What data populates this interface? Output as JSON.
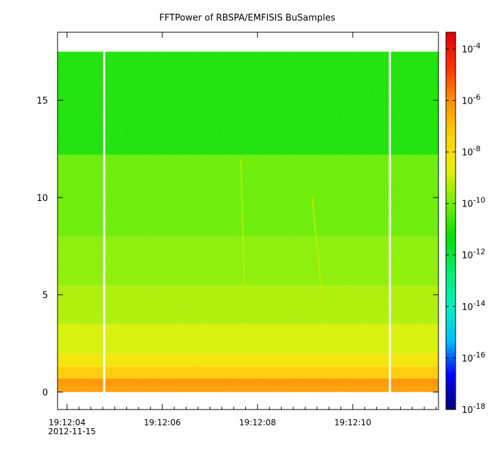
{
  "chart_data": {
    "type": "heatmap",
    "title": "FFTPower of RBSPA/EMFISIS  BuSamples",
    "xlabel": "",
    "ylabel": "",
    "x_tick_labels": [
      "19:12:04",
      "19:12:06",
      "19:12:08",
      "19:12:10"
    ],
    "x_tick_times_s": [
      4,
      6,
      8,
      10
    ],
    "x_date_label": "2012-11-15",
    "xlim_s": [
      3.8,
      11.8
    ],
    "y_ticks": [
      0,
      5,
      10,
      15
    ],
    "ylim": [
      -0.9,
      18.5
    ],
    "data_y_max": 17.5,
    "gaps_s": [
      4.78,
      10.78
    ],
    "colorbar": {
      "scale": "log",
      "range": [
        -18,
        -3.35
      ],
      "tick_exponents": [
        -4,
        -6,
        -8,
        -10,
        -12,
        -14,
        -16,
        -18
      ],
      "base": "10",
      "colormap": [
        "#00007f",
        "#0000ff",
        "#00bfff",
        "#00f0c0",
        "#00f070",
        "#00e000",
        "#70ee00",
        "#e8f000",
        "#ffd000",
        "#ff9000",
        "#ff3000",
        "#e00000"
      ]
    },
    "bands": [
      {
        "y_from": 0.0,
        "y_to": 0.3,
        "log_power": -6.2
      },
      {
        "y_from": 0.3,
        "y_to": 0.7,
        "log_power": -6.0
      },
      {
        "y_from": 0.7,
        "y_to": 1.3,
        "log_power": -7.2
      },
      {
        "y_from": 1.3,
        "y_to": 2.0,
        "log_power": -8.2
      },
      {
        "y_from": 2.0,
        "y_to": 3.5,
        "log_power": -8.9
      },
      {
        "y_from": 3.5,
        "y_to": 5.5,
        "log_power": -9.4
      },
      {
        "y_from": 5.5,
        "y_to": 8.0,
        "log_power": -9.8
      },
      {
        "y_from": 8.0,
        "y_to": 12.2,
        "log_power": -10.2
      },
      {
        "y_from": 12.2,
        "y_to": 17.5,
        "log_power": -11.2
      }
    ],
    "features": [
      {
        "t_from": 7.65,
        "y_from": 12.0,
        "t_to": 7.72,
        "y_to": 5.5
      },
      {
        "t_from": 9.15,
        "y_from": 10.0,
        "t_to": 9.35,
        "y_to": 5.0
      }
    ]
  }
}
